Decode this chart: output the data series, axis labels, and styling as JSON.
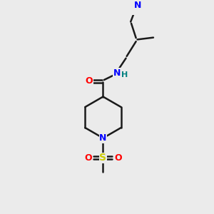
{
  "background_color": "#ebebeb",
  "bond_color": "#1a1a1a",
  "N_color": "#0000ff",
  "O_color": "#ff0000",
  "S_color": "#cccc00",
  "H_color": "#008080",
  "line_width": 1.8,
  "fig_size": [
    3.0,
    3.0
  ],
  "dpi": 100,
  "xlim": [
    0,
    10
  ],
  "ylim": [
    0,
    10
  ]
}
